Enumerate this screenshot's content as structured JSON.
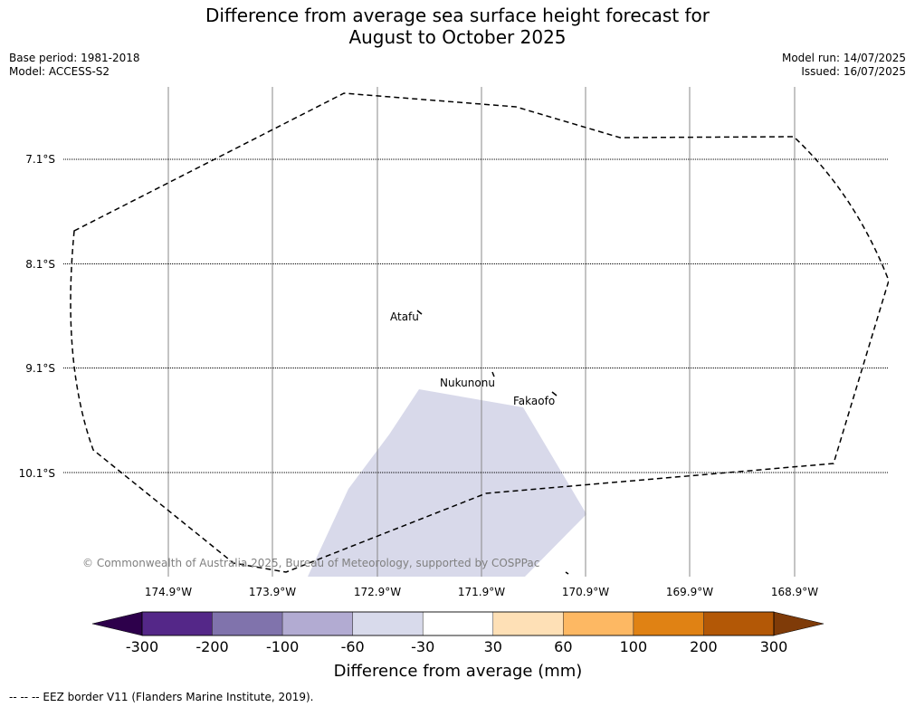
{
  "header": {
    "title_line1": "Difference from average sea surface height forecast for",
    "title_line2": "August to October 2025",
    "base_period": "Base period: 1981-2018",
    "model": "Model: ACCESS-S2",
    "model_run": "Model run: 14/07/2025",
    "issued": "Issued: 16/07/2025"
  },
  "map": {
    "lat_labels": [
      "7.1°S",
      "8.1°S",
      "9.1°S",
      "10.1°S"
    ],
    "lon_labels": [
      "174.9°W",
      "173.9°W",
      "172.9°W",
      "171.9°W",
      "170.9°W",
      "169.9°W",
      "168.9°W"
    ],
    "places": [
      "Atafu",
      "Nukunonu",
      "Fakaofo"
    ],
    "copyright": "© Commonwealth of Australia 2025, Bureau of Meteorology, supported by COSPPac",
    "anomaly_fill_color": "#d8d9ea",
    "anomaly_category": "-60 to -30"
  },
  "colorbar": {
    "ticks": [
      "-300",
      "-200",
      "-100",
      "-60",
      "-30",
      "30",
      "60",
      "100",
      "200",
      "300"
    ],
    "colors": [
      "#2d004b",
      "#542788",
      "#8073ac",
      "#b2abd2",
      "#d8daeb",
      "#ffffff",
      "#fee0b6",
      "#fdb863",
      "#e08214",
      "#b35806",
      "#7f3b08"
    ],
    "label": "Difference from average (mm)"
  },
  "footer": {
    "legend": "--  --  -- EEZ border V11 (Flanders Marine Institute, 2019)."
  }
}
